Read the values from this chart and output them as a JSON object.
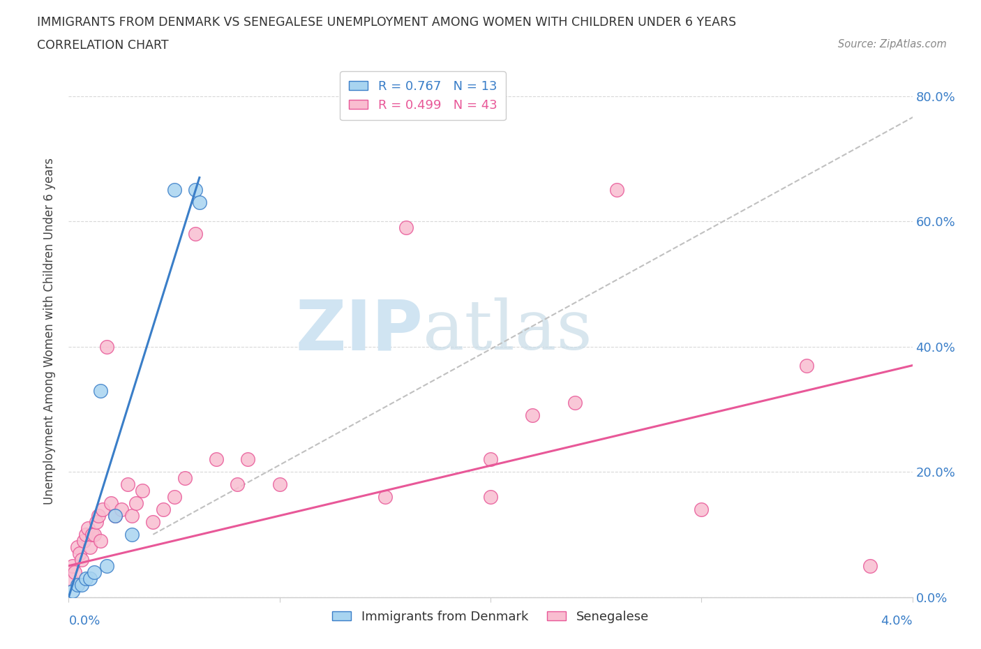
{
  "title_line1": "IMMIGRANTS FROM DENMARK VS SENEGALESE UNEMPLOYMENT AMONG WOMEN WITH CHILDREN UNDER 6 YEARS",
  "title_line2": "CORRELATION CHART",
  "source_text": "Source: ZipAtlas.com",
  "ylabel": "Unemployment Among Women with Children Under 6 years",
  "xlim": [
    0.0,
    4.0
  ],
  "ylim": [
    0.0,
    85.0
  ],
  "ytick_labels": [
    "0.0%",
    "20.0%",
    "40.0%",
    "60.0%",
    "80.0%"
  ],
  "ytick_values": [
    0,
    20,
    40,
    60,
    80
  ],
  "legend_blue_label": "R = 0.767   N = 13",
  "legend_pink_label": "R = 0.499   N = 43",
  "blue_scatter_x": [
    0.02,
    0.04,
    0.06,
    0.08,
    0.1,
    0.12,
    0.15,
    0.18,
    0.22,
    0.5,
    0.6,
    0.62,
    0.3
  ],
  "blue_scatter_y": [
    1,
    2,
    2,
    3,
    3,
    4,
    33,
    5,
    13,
    65,
    65,
    63,
    10
  ],
  "pink_scatter_x": [
    0.01,
    0.02,
    0.03,
    0.04,
    0.05,
    0.06,
    0.07,
    0.08,
    0.09,
    0.1,
    0.11,
    0.12,
    0.13,
    0.14,
    0.15,
    0.16,
    0.18,
    0.2,
    0.22,
    0.25,
    0.28,
    0.3,
    0.32,
    0.35,
    0.4,
    0.45,
    0.5,
    0.55,
    0.6,
    0.7,
    0.8,
    1.0,
    1.5,
    1.6,
    2.0,
    2.2,
    2.4,
    2.6,
    3.0,
    3.5,
    3.8,
    0.85,
    2.0
  ],
  "pink_scatter_y": [
    3,
    5,
    4,
    8,
    7,
    6,
    9,
    10,
    11,
    8,
    10,
    10,
    12,
    13,
    9,
    14,
    40,
    15,
    13,
    14,
    18,
    13,
    15,
    17,
    12,
    14,
    16,
    19,
    58,
    22,
    18,
    18,
    16,
    59,
    22,
    29,
    31,
    65,
    14,
    37,
    5,
    22,
    16
  ],
  "blue_color": "#a8d4f0",
  "pink_color": "#f9bdd0",
  "blue_line_color": "#3a7ec8",
  "pink_line_color": "#e85898",
  "ref_line_color": "#c0c0c0",
  "bg_color": "#ffffff",
  "watermark_zip": "ZIP",
  "watermark_atlas": "atlas",
  "watermark_color": "#d0e4f2",
  "blue_regression": [
    0.0,
    0.62,
    0.0,
    67.0
  ],
  "pink_regression": [
    0.0,
    4.0,
    5.0,
    37.0
  ],
  "ref_line": [
    0.4,
    4.4,
    10.0,
    84.0
  ]
}
